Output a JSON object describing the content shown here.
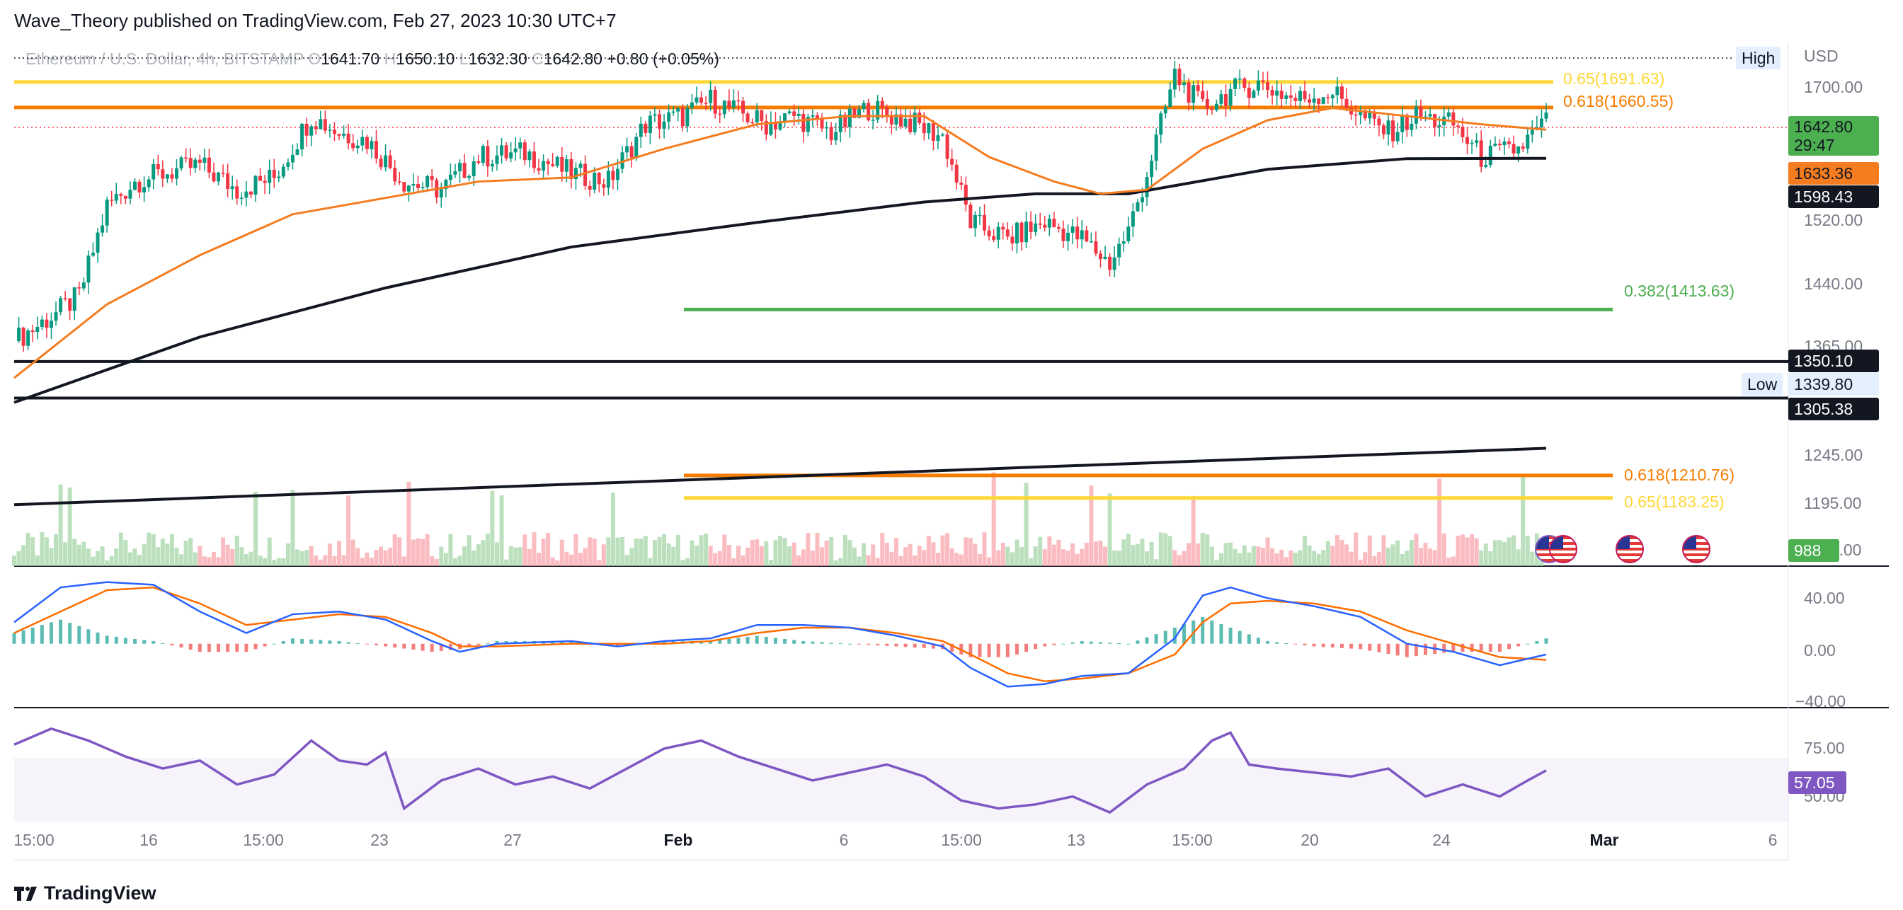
{
  "header": {
    "publish_line": "Wave_Theory published on TradingView.com, Feb 27, 2023 10:30 UTC+7",
    "symbol": "Ethereum / U.S. Dollar, 4h, BITSTAMP",
    "o_label": "O",
    "o_value": "1641.70",
    "h_label": "H",
    "h_value": "1650.10",
    "l_label": "L",
    "l_value": "1632.30",
    "c_label": "C",
    "c_value": "1642.80",
    "change": "+0.80 (+0.05%)"
  },
  "price_axis": {
    "currency": "USD",
    "ticks": [
      "1700.00",
      "1520.00",
      "1440.00",
      "1365.00",
      "1245.00",
      "1195.00",
      "1100.00"
    ]
  },
  "tags": {
    "high_label": "High",
    "low_label": "Low",
    "low_value": "1339.80",
    "last_price": "1642.80",
    "countdown": "29:47",
    "ema50_value": "1633.36",
    "ema200_value": "1598.43",
    "level_1350": "1350.10",
    "level_1305": "1305.38",
    "volume_value": "988",
    "rsi_value": "57.05"
  },
  "fib_labels": {
    "f065_top": "0.65(1691.63)",
    "f0618_top": "0.618(1660.55)",
    "f0382": "0.382(1413.63)",
    "f0618_bot": "0.618(1210.76)",
    "f065_bot": "0.65(1183.25)"
  },
  "macd_axis": {
    "ticks": [
      "40.00",
      "0.00",
      "−40.00"
    ]
  },
  "rsi_axis": {
    "ticks": [
      "75.00",
      "50.00"
    ]
  },
  "time_axis": {
    "ticks": [
      "15:00",
      "16",
      "15:00",
      "23",
      "27",
      "Feb",
      "6",
      "15:00",
      "13",
      "15:00",
      "20",
      "24",
      "Mar",
      "6"
    ]
  },
  "footer": {
    "brand": "TradingView"
  },
  "colors": {
    "up": "#089981",
    "down": "#f23645",
    "ema50": "#f57c1f",
    "ema200": "#131722",
    "fib_065": "#fdd835",
    "fib_0618": "#f57c00",
    "fib_0382": "#4caf50",
    "macd": "#2962ff",
    "signal": "#ff6d00",
    "rsi": "#7e57c2"
  },
  "chart_data": {
    "type": "candlestick",
    "symbol": "ETH/USD",
    "timeframe": "4h",
    "ylim": [
      1100,
      1740
    ],
    "close_path": [
      [
        0,
        1375
      ],
      [
        8,
        1405
      ],
      [
        14,
        1430
      ],
      [
        20,
        1540
      ],
      [
        26,
        1570
      ],
      [
        32,
        1580
      ],
      [
        40,
        1590
      ],
      [
        48,
        1560
      ],
      [
        56,
        1575
      ],
      [
        64,
        1650
      ],
      [
        70,
        1630
      ],
      [
        76,
        1620
      ],
      [
        84,
        1570
      ],
      [
        92,
        1560
      ],
      [
        100,
        1600
      ],
      [
        110,
        1605
      ],
      [
        120,
        1580
      ],
      [
        128,
        1570
      ],
      [
        136,
        1640
      ],
      [
        144,
        1650
      ],
      [
        150,
        1670
      ],
      [
        156,
        1655
      ],
      [
        162,
        1640
      ],
      [
        168,
        1650
      ],
      [
        176,
        1630
      ],
      [
        184,
        1660
      ],
      [
        192,
        1645
      ],
      [
        200,
        1625
      ],
      [
        206,
        1520
      ],
      [
        214,
        1500
      ],
      [
        222,
        1520
      ],
      [
        230,
        1500
      ],
      [
        236,
        1470
      ],
      [
        240,
        1510
      ],
      [
        244,
        1580
      ],
      [
        250,
        1700
      ],
      [
        256,
        1660
      ],
      [
        262,
        1680
      ],
      [
        268,
        1690
      ],
      [
        276,
        1670
      ],
      [
        284,
        1680
      ],
      [
        290,
        1650
      ],
      [
        296,
        1630
      ],
      [
        302,
        1650
      ],
      [
        310,
        1640
      ],
      [
        316,
        1600
      ],
      [
        324,
        1610
      ],
      [
        330,
        1642.8
      ]
    ],
    "ema50_path": [
      [
        0,
        1330
      ],
      [
        20,
        1420
      ],
      [
        40,
        1480
      ],
      [
        60,
        1530
      ],
      [
        80,
        1550
      ],
      [
        100,
        1570
      ],
      [
        120,
        1575
      ],
      [
        140,
        1610
      ],
      [
        160,
        1640
      ],
      [
        180,
        1650
      ],
      [
        196,
        1650
      ],
      [
        210,
        1600
      ],
      [
        224,
        1570
      ],
      [
        234,
        1555
      ],
      [
        244,
        1560
      ],
      [
        256,
        1610
      ],
      [
        270,
        1645
      ],
      [
        284,
        1660
      ],
      [
        300,
        1650
      ],
      [
        316,
        1640
      ],
      [
        330,
        1633.36
      ]
    ],
    "ema200_path": [
      [
        0,
        1300
      ],
      [
        40,
        1380
      ],
      [
        80,
        1440
      ],
      [
        120,
        1490
      ],
      [
        160,
        1520
      ],
      [
        196,
        1545
      ],
      [
        220,
        1555
      ],
      [
        240,
        1555
      ],
      [
        270,
        1585
      ],
      [
        300,
        1598
      ],
      [
        330,
        1598.43
      ]
    ],
    "horizontal_levels": [
      {
        "price": 1350.1,
        "label": "1350.10"
      },
      {
        "price": 1305.38,
        "label": "1305.38"
      }
    ],
    "fibonacci": [
      {
        "ratio": 0.65,
        "price": 1691.63
      },
      {
        "ratio": 0.618,
        "price": 1660.55
      },
      {
        "ratio": 0.382,
        "price": 1413.63
      },
      {
        "ratio": 0.618,
        "price": 1210.76
      },
      {
        "ratio": 0.65,
        "price": 1183.25
      }
    ],
    "trendline_200w": {
      "from": [
        0,
        1175
      ],
      "to": [
        330,
        1244
      ]
    },
    "last_price": 1642.8,
    "high_price": 1740,
    "low_price": 1339.8,
    "volume_last": 988,
    "macd": {
      "ylim": [
        -45,
        50
      ],
      "macd_path": [
        [
          0,
          16
        ],
        [
          10,
          42
        ],
        [
          20,
          46
        ],
        [
          30,
          44
        ],
        [
          40,
          24
        ],
        [
          50,
          8
        ],
        [
          60,
          22
        ],
        [
          70,
          24
        ],
        [
          80,
          18
        ],
        [
          90,
          2
        ],
        [
          96,
          -6
        ],
        [
          104,
          0
        ],
        [
          120,
          2
        ],
        [
          130,
          -2
        ],
        [
          140,
          2
        ],
        [
          150,
          4
        ],
        [
          160,
          14
        ],
        [
          170,
          14
        ],
        [
          180,
          12
        ],
        [
          190,
          6
        ],
        [
          200,
          -2
        ],
        [
          206,
          -18
        ],
        [
          214,
          -32
        ],
        [
          222,
          -30
        ],
        [
          230,
          -24
        ],
        [
          240,
          -22
        ],
        [
          250,
          4
        ],
        [
          256,
          36
        ],
        [
          262,
          42
        ],
        [
          270,
          34
        ],
        [
          280,
          28
        ],
        [
          290,
          20
        ],
        [
          300,
          0
        ],
        [
          310,
          -6
        ],
        [
          320,
          -16
        ],
        [
          330,
          -8
        ]
      ],
      "signal_path": [
        [
          0,
          8
        ],
        [
          10,
          24
        ],
        [
          20,
          40
        ],
        [
          30,
          42
        ],
        [
          40,
          30
        ],
        [
          50,
          14
        ],
        [
          60,
          18
        ],
        [
          70,
          22
        ],
        [
          80,
          20
        ],
        [
          90,
          8
        ],
        [
          96,
          -2
        ],
        [
          104,
          -2
        ],
        [
          120,
          0
        ],
        [
          130,
          0
        ],
        [
          140,
          0
        ],
        [
          150,
          2
        ],
        [
          160,
          8
        ],
        [
          170,
          12
        ],
        [
          180,
          12
        ],
        [
          190,
          8
        ],
        [
          200,
          2
        ],
        [
          206,
          -8
        ],
        [
          214,
          -22
        ],
        [
          222,
          -28
        ],
        [
          230,
          -26
        ],
        [
          240,
          -22
        ],
        [
          250,
          -8
        ],
        [
          256,
          16
        ],
        [
          262,
          30
        ],
        [
          270,
          32
        ],
        [
          280,
          30
        ],
        [
          290,
          24
        ],
        [
          300,
          10
        ],
        [
          310,
          0
        ],
        [
          320,
          -10
        ],
        [
          330,
          -12
        ]
      ]
    },
    "rsi": {
      "ylim": [
        30,
        85
      ],
      "band": [
        30,
        70
      ],
      "path": [
        [
          0,
          70
        ],
        [
          8,
          78
        ],
        [
          16,
          72
        ],
        [
          24,
          64
        ],
        [
          32,
          58
        ],
        [
          40,
          62
        ],
        [
          48,
          50
        ],
        [
          56,
          55
        ],
        [
          64,
          72
        ],
        [
          70,
          62
        ],
        [
          76,
          60
        ],
        [
          80,
          66
        ],
        [
          84,
          38
        ],
        [
          92,
          52
        ],
        [
          100,
          58
        ],
        [
          108,
          50
        ],
        [
          116,
          54
        ],
        [
          124,
          48
        ],
        [
          132,
          58
        ],
        [
          140,
          68
        ],
        [
          148,
          72
        ],
        [
          156,
          64
        ],
        [
          164,
          58
        ],
        [
          172,
          52
        ],
        [
          180,
          56
        ],
        [
          188,
          60
        ],
        [
          196,
          54
        ],
        [
          204,
          42
        ],
        [
          212,
          38
        ],
        [
          220,
          40
        ],
        [
          228,
          44
        ],
        [
          236,
          36
        ],
        [
          244,
          50
        ],
        [
          252,
          58
        ],
        [
          258,
          72
        ],
        [
          262,
          76
        ],
        [
          266,
          60
        ],
        [
          272,
          58
        ],
        [
          280,
          56
        ],
        [
          288,
          54
        ],
        [
          296,
          58
        ],
        [
          304,
          44
        ],
        [
          312,
          50
        ],
        [
          320,
          44
        ],
        [
          326,
          52
        ],
        [
          330,
          57.05
        ]
      ]
    }
  }
}
